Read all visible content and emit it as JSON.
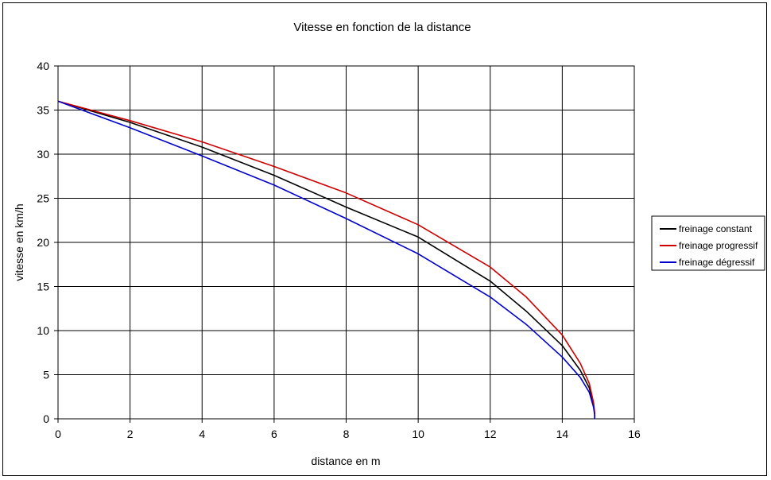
{
  "chart_data": {
    "type": "line",
    "title": "Vitesse en fonction de la distance",
    "xlabel": "distance en m",
    "ylabel": "vitesse en km/h",
    "xlim": [
      0,
      16
    ],
    "ylim": [
      0,
      40
    ],
    "xticks": [
      0,
      2,
      4,
      6,
      8,
      10,
      12,
      14,
      16
    ],
    "yticks": [
      0,
      5,
      10,
      15,
      20,
      25,
      30,
      35,
      40
    ],
    "grid": true,
    "legend_position": "right",
    "series": [
      {
        "name": "freinage constant",
        "color": "#000000",
        "x": [
          0,
          2,
          4,
          6,
          8,
          10,
          12,
          13,
          14,
          14.5,
          14.75,
          14.87,
          14.9,
          14.9
        ],
        "y": [
          36,
          33.6,
          30.8,
          27.6,
          24.0,
          20.6,
          15.6,
          12.2,
          8.3,
          5.5,
          3.5,
          1.5,
          0.5,
          0
        ]
      },
      {
        "name": "freinage progressif",
        "color": "#cc0000",
        "x": [
          0,
          2,
          4,
          6,
          8,
          10,
          12,
          13,
          14,
          14.5,
          14.75,
          14.87,
          14.9,
          14.9
        ],
        "y": [
          36,
          33.8,
          31.4,
          28.6,
          25.6,
          22.0,
          17.2,
          13.8,
          9.5,
          6.3,
          4.0,
          1.8,
          0.6,
          0
        ]
      },
      {
        "name": "freinage dégressif",
        "color": "#0000cc",
        "x": [
          0,
          2,
          4,
          6,
          8,
          10,
          12,
          13,
          14,
          14.5,
          14.75,
          14.87,
          14.9,
          14.9
        ],
        "y": [
          36,
          33.0,
          29.8,
          26.5,
          22.7,
          18.7,
          13.8,
          10.7,
          7.0,
          4.7,
          3.0,
          1.3,
          0.4,
          0
        ]
      }
    ]
  }
}
